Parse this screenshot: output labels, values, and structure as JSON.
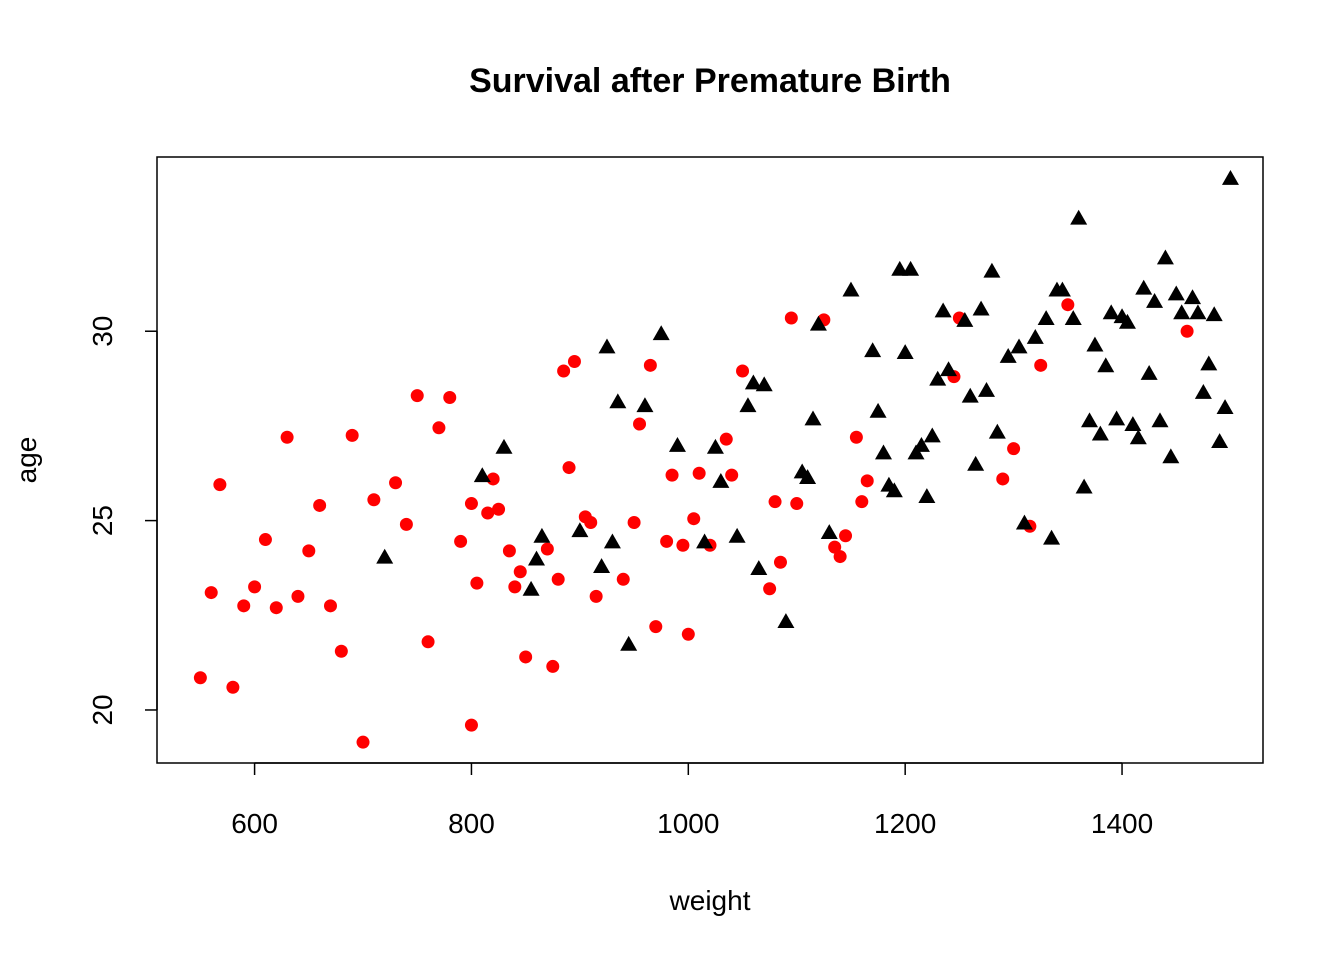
{
  "chart_data": {
    "type": "scatter",
    "title": "Survival after Premature Birth",
    "xlabel": "weight",
    "ylabel": "age",
    "xlim": [
      510,
      1530
    ],
    "ylim": [
      18.6,
      34.6
    ],
    "xticks": [
      600,
      800,
      1000,
      1200,
      1400
    ],
    "yticks": [
      20,
      25,
      30
    ],
    "grid": false,
    "colors": {
      "red": "#ff0000",
      "black": "#000000"
    },
    "series": [
      {
        "color": "#ff0000",
        "marker": "circle",
        "points": [
          [
            550,
            20.85
          ],
          [
            560,
            23.1
          ],
          [
            568,
            25.95
          ],
          [
            580,
            20.6
          ],
          [
            590,
            22.75
          ],
          [
            600,
            23.25
          ],
          [
            610,
            24.5
          ],
          [
            620,
            22.7
          ],
          [
            630,
            27.2
          ],
          [
            640,
            23.0
          ],
          [
            650,
            24.2
          ],
          [
            660,
            25.4
          ],
          [
            670,
            22.75
          ],
          [
            680,
            21.55
          ],
          [
            690,
            27.25
          ],
          [
            700,
            19.15
          ],
          [
            710,
            25.55
          ],
          [
            730,
            26.0
          ],
          [
            740,
            24.9
          ],
          [
            750,
            28.3
          ],
          [
            760,
            21.8
          ],
          [
            770,
            27.45
          ],
          [
            780,
            28.25
          ],
          [
            790,
            24.45
          ],
          [
            800,
            25.45
          ],
          [
            800,
            19.6
          ],
          [
            805,
            23.35
          ],
          [
            815,
            25.2
          ],
          [
            820,
            26.1
          ],
          [
            825,
            25.3
          ],
          [
            835,
            24.2
          ],
          [
            840,
            23.25
          ],
          [
            845,
            23.65
          ],
          [
            850,
            21.4
          ],
          [
            870,
            24.25
          ],
          [
            875,
            21.15
          ],
          [
            880,
            23.45
          ],
          [
            885,
            28.95
          ],
          [
            890,
            26.4
          ],
          [
            895,
            29.2
          ],
          [
            905,
            25.1
          ],
          [
            910,
            24.95
          ],
          [
            915,
            23.0
          ],
          [
            940,
            23.45
          ],
          [
            950,
            24.95
          ],
          [
            955,
            27.55
          ],
          [
            965,
            29.1
          ],
          [
            970,
            22.2
          ],
          [
            980,
            24.45
          ],
          [
            985,
            26.2
          ],
          [
            995,
            24.35
          ],
          [
            1000,
            22.0
          ],
          [
            1005,
            25.05
          ],
          [
            1010,
            26.25
          ],
          [
            1020,
            24.35
          ],
          [
            1035,
            27.15
          ],
          [
            1040,
            26.2
          ],
          [
            1050,
            28.95
          ],
          [
            1075,
            23.2
          ],
          [
            1080,
            25.5
          ],
          [
            1085,
            23.9
          ],
          [
            1095,
            30.35
          ],
          [
            1100,
            25.45
          ],
          [
            1125,
            30.3
          ],
          [
            1135,
            24.3
          ],
          [
            1140,
            24.05
          ],
          [
            1145,
            24.6
          ],
          [
            1155,
            27.2
          ],
          [
            1160,
            25.5
          ],
          [
            1165,
            26.05
          ],
          [
            1245,
            28.8
          ],
          [
            1250,
            30.35
          ],
          [
            1290,
            26.1
          ],
          [
            1300,
            26.9
          ],
          [
            1315,
            24.85
          ],
          [
            1325,
            29.1
          ],
          [
            1350,
            30.7
          ],
          [
            1460,
            30.0
          ]
        ]
      },
      {
        "color": "#000000",
        "marker": "triangle",
        "points": [
          [
            720,
            24.0
          ],
          [
            810,
            26.15
          ],
          [
            830,
            26.9
          ],
          [
            855,
            23.15
          ],
          [
            860,
            23.95
          ],
          [
            865,
            24.55
          ],
          [
            900,
            24.7
          ],
          [
            920,
            23.75
          ],
          [
            925,
            29.55
          ],
          [
            930,
            24.4
          ],
          [
            935,
            28.1
          ],
          [
            945,
            21.7
          ],
          [
            960,
            28.0
          ],
          [
            975,
            29.9
          ],
          [
            990,
            26.95
          ],
          [
            1015,
            24.4
          ],
          [
            1025,
            26.9
          ],
          [
            1030,
            26.0
          ],
          [
            1045,
            24.55
          ],
          [
            1055,
            28.0
          ],
          [
            1060,
            28.6
          ],
          [
            1065,
            23.7
          ],
          [
            1070,
            28.55
          ],
          [
            1090,
            22.3
          ],
          [
            1105,
            26.25
          ],
          [
            1110,
            26.1
          ],
          [
            1115,
            27.65
          ],
          [
            1120,
            30.15
          ],
          [
            1130,
            24.65
          ],
          [
            1150,
            31.05
          ],
          [
            1170,
            29.45
          ],
          [
            1175,
            27.85
          ],
          [
            1180,
            26.75
          ],
          [
            1185,
            25.9
          ],
          [
            1190,
            25.75
          ],
          [
            1195,
            31.6
          ],
          [
            1200,
            29.4
          ],
          [
            1205,
            31.6
          ],
          [
            1210,
            26.75
          ],
          [
            1215,
            26.95
          ],
          [
            1220,
            25.6
          ],
          [
            1225,
            27.2
          ],
          [
            1230,
            28.7
          ],
          [
            1235,
            30.5
          ],
          [
            1240,
            28.95
          ],
          [
            1255,
            30.25
          ],
          [
            1260,
            28.25
          ],
          [
            1265,
            26.45
          ],
          [
            1270,
            30.55
          ],
          [
            1275,
            28.4
          ],
          [
            1280,
            31.55
          ],
          [
            1285,
            27.3
          ],
          [
            1295,
            29.3
          ],
          [
            1305,
            29.55
          ],
          [
            1310,
            24.9
          ],
          [
            1320,
            29.8
          ],
          [
            1330,
            30.3
          ],
          [
            1335,
            24.5
          ],
          [
            1340,
            31.05
          ],
          [
            1345,
            31.05
          ],
          [
            1355,
            30.3
          ],
          [
            1360,
            32.95
          ],
          [
            1365,
            25.85
          ],
          [
            1370,
            27.6
          ],
          [
            1375,
            29.6
          ],
          [
            1380,
            27.25
          ],
          [
            1385,
            29.05
          ],
          [
            1390,
            30.45
          ],
          [
            1395,
            27.65
          ],
          [
            1400,
            30.35
          ],
          [
            1405,
            30.2
          ],
          [
            1410,
            27.5
          ],
          [
            1415,
            27.15
          ],
          [
            1420,
            31.1
          ],
          [
            1425,
            28.85
          ],
          [
            1430,
            30.75
          ],
          [
            1435,
            27.6
          ],
          [
            1440,
            31.9
          ],
          [
            1445,
            26.65
          ],
          [
            1450,
            30.95
          ],
          [
            1455,
            30.45
          ],
          [
            1465,
            30.85
          ],
          [
            1470,
            30.45
          ],
          [
            1475,
            28.35
          ],
          [
            1480,
            29.1
          ],
          [
            1485,
            30.4
          ],
          [
            1490,
            27.05
          ],
          [
            1495,
            27.95
          ],
          [
            1500,
            34.0
          ]
        ]
      }
    ]
  }
}
